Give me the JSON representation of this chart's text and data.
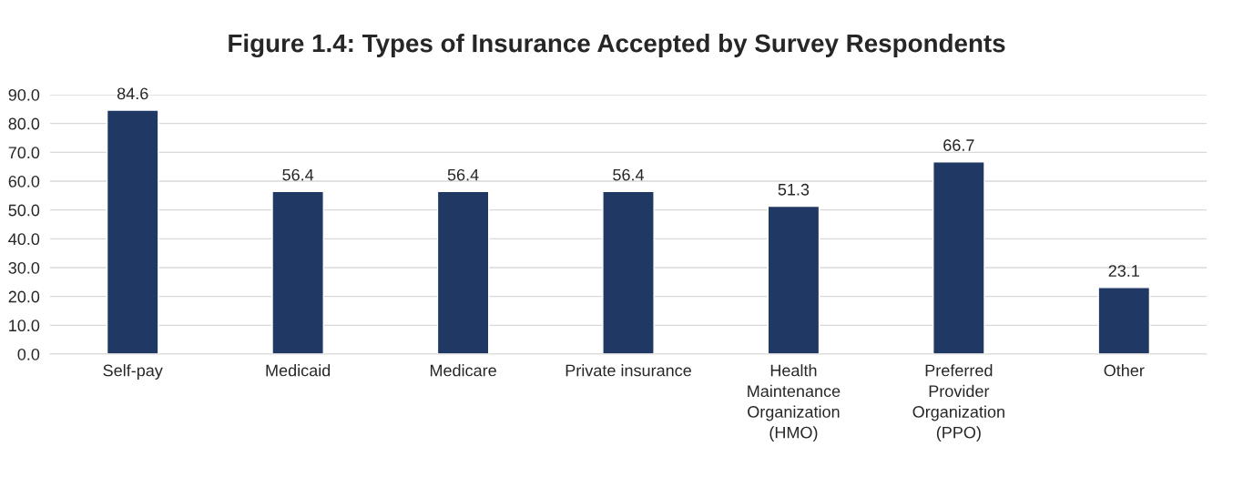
{
  "chart_data": {
    "type": "bar",
    "title": "Figure 1.4: Types of Insurance Accepted by Survey Respondents",
    "categories": [
      "Self-pay",
      "Medicaid",
      "Medicare",
      "Private insurance",
      "Health Maintenance Organization (HMO)",
      "Preferred Provider Organization (PPO)",
      "Other"
    ],
    "values": [
      84.6,
      56.4,
      56.4,
      56.4,
      51.3,
      66.7,
      23.1
    ],
    "color": "#203864",
    "ylim": [
      0,
      90
    ],
    "yticks": [
      {
        "value": 0,
        "label": "0.0"
      },
      {
        "value": 10,
        "label": "10.0"
      },
      {
        "value": 20,
        "label": "20.0"
      },
      {
        "value": 30,
        "label": "30.0"
      },
      {
        "value": 40,
        "label": "40.0"
      },
      {
        "value": 50,
        "label": "50.0"
      },
      {
        "value": 60,
        "label": "60.0"
      },
      {
        "value": 70,
        "label": "70.0"
      },
      {
        "value": 80,
        "label": "80.0"
      },
      {
        "value": 90,
        "label": "90.0"
      }
    ],
    "grid": "y",
    "data_labels": true,
    "legend": false
  }
}
